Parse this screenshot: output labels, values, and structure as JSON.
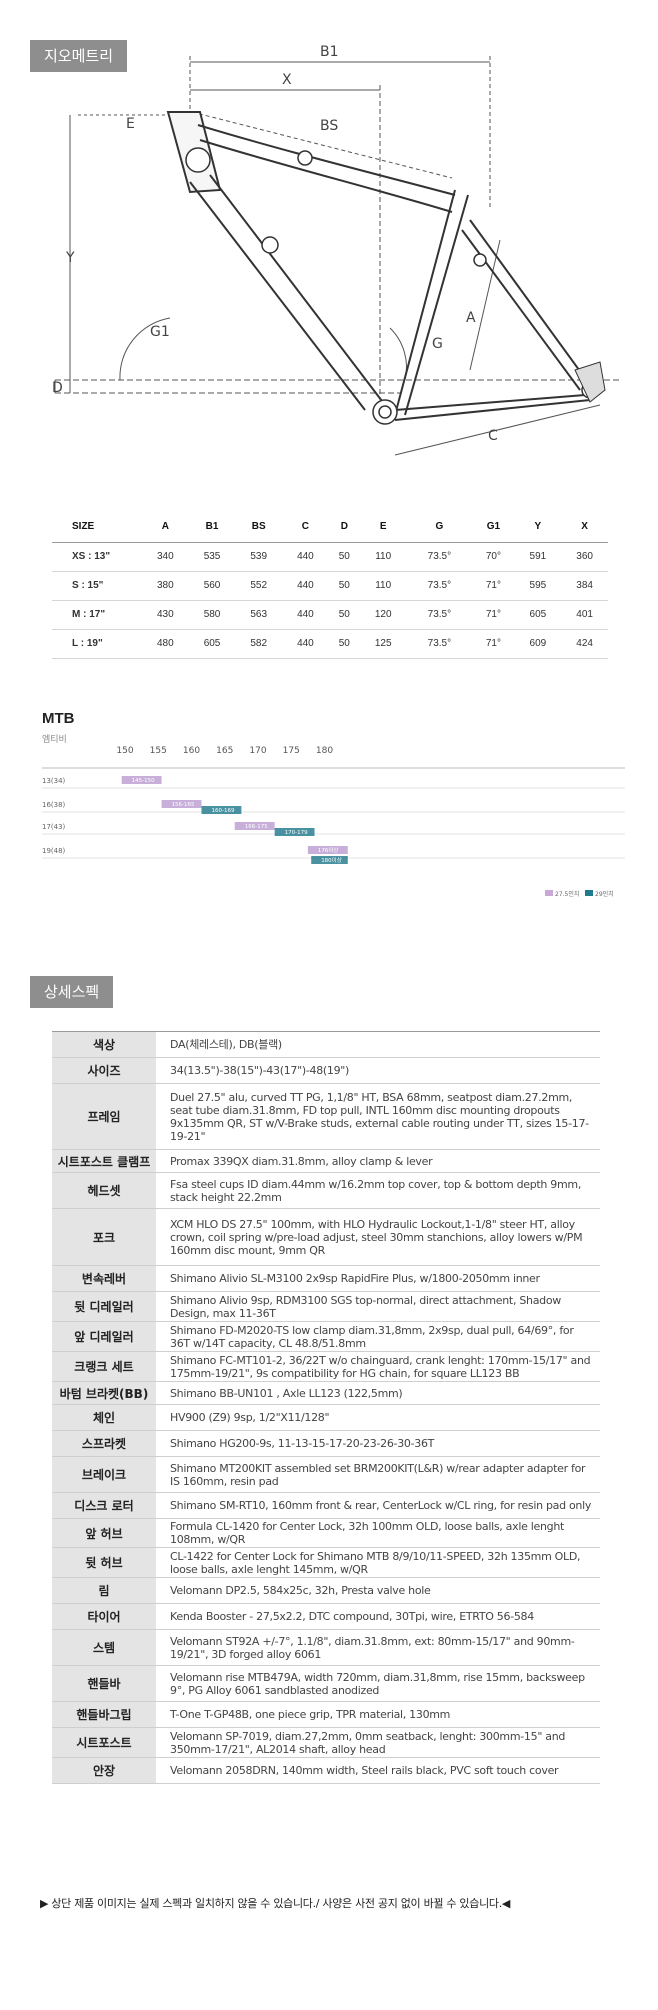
{
  "sections": {
    "geometry_tab": "지오메트리",
    "spec_tab": "상세스펙"
  },
  "drawing_labels": {
    "B1": "B1",
    "X": "X",
    "BS": "BS",
    "E": "E",
    "Y": "Y",
    "G1": "G1",
    "D": "D",
    "A": "A",
    "G": "G",
    "C": "C"
  },
  "size_table": {
    "headers": [
      "SIZE",
      "A",
      "B1",
      "BS",
      "C",
      "D",
      "E",
      "G",
      "G1",
      "Y",
      "X"
    ],
    "rows": [
      [
        "XS : 13\"",
        "340",
        "535",
        "539",
        "440",
        "50",
        "110",
        "73.5°",
        "70°",
        "591",
        "360"
      ],
      [
        "S : 15\"",
        "380",
        "560",
        "552",
        "440",
        "50",
        "110",
        "73.5°",
        "71°",
        "595",
        "384"
      ],
      [
        "M : 17\"",
        "430",
        "580",
        "563",
        "440",
        "50",
        "120",
        "73.5°",
        "71°",
        "605",
        "401"
      ],
      [
        "L : 19\"",
        "480",
        "605",
        "582",
        "440",
        "50",
        "125",
        "73.5°",
        "71°",
        "609",
        "424"
      ]
    ]
  },
  "mtb_chart": {
    "title": "MTB",
    "subtitle": "엠티비",
    "ticks": [
      "150",
      "155",
      "160",
      "165",
      "170",
      "175",
      "180"
    ],
    "rows": [
      {
        "label": "13(34)",
        "purple": {
          "from": 149.5,
          "to": 155.5,
          "text": "145-150"
        },
        "teal": null
      },
      {
        "label": "16(38)",
        "purple": {
          "from": 155.5,
          "to": 161.5,
          "text": "156-165"
        },
        "teal": {
          "from": 161.5,
          "to": 167.5,
          "text": "160-169"
        }
      },
      {
        "label": "17(43)",
        "purple": {
          "from": 166.5,
          "to": 172.5,
          "text": "166-175"
        },
        "teal": {
          "from": 172.5,
          "to": 178.5,
          "text": "170-179"
        }
      },
      {
        "label": "19(48)",
        "purple": {
          "from": 177.5,
          "to": 183.5,
          "text": "176이상"
        },
        "teal": {
          "from": 178,
          "to": 183.5,
          "text": "180이상"
        }
      }
    ],
    "legend": [
      {
        "label": "27.5인치",
        "color": "#c9a8d8"
      },
      {
        "label": "29인치",
        "color": "#1f7a8c"
      }
    ],
    "colors": {
      "purple": "#b99bcf",
      "teal": "#2a7f91"
    }
  },
  "spec_table": [
    {
      "label": "색상",
      "value": "DA(체레스테), DB(블랙)"
    },
    {
      "label": "사이즈",
      "value": "34(13.5\")-38(15\")-43(17\")-48(19\")"
    },
    {
      "label": "프레임",
      "value": "Duel 27.5\" alu, curved TT PG, 1,1/8\" HT, BSA 68mm, seatpost diam.27.2mm, seat tube diam.31.8mm, FD top pull, INTL 160mm disc mounting dropouts 9x135mm QR, ST w/V-Brake studs, external cable routing under TT, sizes 15-17-19-21\""
    },
    {
      "label": "시트포스트 클램프",
      "value": "Promax 339QX diam.31.8mm, alloy clamp & lever"
    },
    {
      "label": "헤드셋",
      "value": "Fsa steel cups ID diam.44mm w/16.2mm top cover, top & bottom depth 9mm, stack height 22.2mm"
    },
    {
      "label": "포크",
      "value": "XCM HLO DS 27.5\" 100mm, with HLO Hydraulic Lockout,1-1/8\" steer HT, alloy crown, coil spring w/pre-load adjust, steel 30mm stanchions, alloy lowers w/PM 160mm disc mount, 9mm QR"
    },
    {
      "label": "변속레버",
      "value": "Shimano Alivio SL-M3100 2x9sp RapidFire Plus, w/1800-2050mm inner"
    },
    {
      "label": "뒷 디레일러",
      "value": "Shimano Alivio 9sp, RDM3100 SGS top-normal, direct attachment, Shadow Design, max 11-36T"
    },
    {
      "label": "앞 디레일러",
      "value": "Shimano FD-M2020-TS low clamp diam.31,8mm, 2x9sp, dual pull, 64/69°, for 36T w/14T capacity, CL 48.8/51.8mm"
    },
    {
      "label": "크랭크 세트",
      "value": "Shimano FC-MT101-2, 36/22T w/o chainguard, crank lenght: 170mm-15/17\" and 175mm-19/21\", 9s compatibility for HG chain, for square LL123 BB"
    },
    {
      "label": "바텀 브라켓(BB)",
      "value": "Shimano BB-UN101 , Axle LL123 (122,5mm)"
    },
    {
      "label": "체인",
      "value": "HV900 (Z9) 9sp, 1/2\"X11/128\""
    },
    {
      "label": "스프라켓",
      "value": "Shimano HG200-9s, 11-13-15-17-20-23-26-30-36T"
    },
    {
      "label": "브레이크",
      "value": "Shimano MT200KIT assembled set BRM200KIT(L&R) w/rear adapter adapter for IS 160mm, resin pad"
    },
    {
      "label": "디스크 로터",
      "value": "Shimano SM-RT10, 160mm front & rear, CenterLock w/CL ring, for resin pad only"
    },
    {
      "label": "앞 허브",
      "value": "Formula CL-1420 for Center Lock, 32h 100mm OLD, loose balls, axle lenght 108mm, w/QR"
    },
    {
      "label": "뒷 허브",
      "value": "CL-1422 for Center Lock for Shimano MTB 8/9/10/11-SPEED, 32h 135mm OLD, loose balls, axle lenght 145mm, w/QR"
    },
    {
      "label": "림",
      "value": "Velomann DP2.5, 584x25c, 32h, Presta valve hole"
    },
    {
      "label": "타이어",
      "value": "Kenda Booster - 27,5x2.2, DTC compound, 30Tpi, wire, ETRTO 56-584"
    },
    {
      "label": "스템",
      "value": "Velomann ST92A +/-7°, 1.1/8\", diam.31.8mm, ext: 80mm-15/17\" and 90mm-19/21\", 3D forged alloy 6061"
    },
    {
      "label": "핸들바",
      "value": "Velomann rise MTB479A, width 720mm, diam.31,8mm, rise 15mm, backsweep 9°, PG Alloy 6061 sandblasted anodized"
    },
    {
      "label": "핸들바그립",
      "value": "T-One T-GP48B, one piece grip, TPR material, 130mm"
    },
    {
      "label": "시트포스트",
      "value": "Velomann SP-7019, diam.27,2mm, 0mm seatback, lenght: 300mm-15\" and 350mm-17/21\", AL2014 shaft, alloy head"
    },
    {
      "label": "안장",
      "value": "Velomann 2058DRN, 140mm width, Steel rails black, PVC soft touch cover"
    }
  ],
  "footer_note": "▶ 상단 제품 이미지는 실제 스펙과 일치하지 않을 수 있습니다./ 사양은 사전 공지 없이 바뀔 수 있습니다.◀"
}
